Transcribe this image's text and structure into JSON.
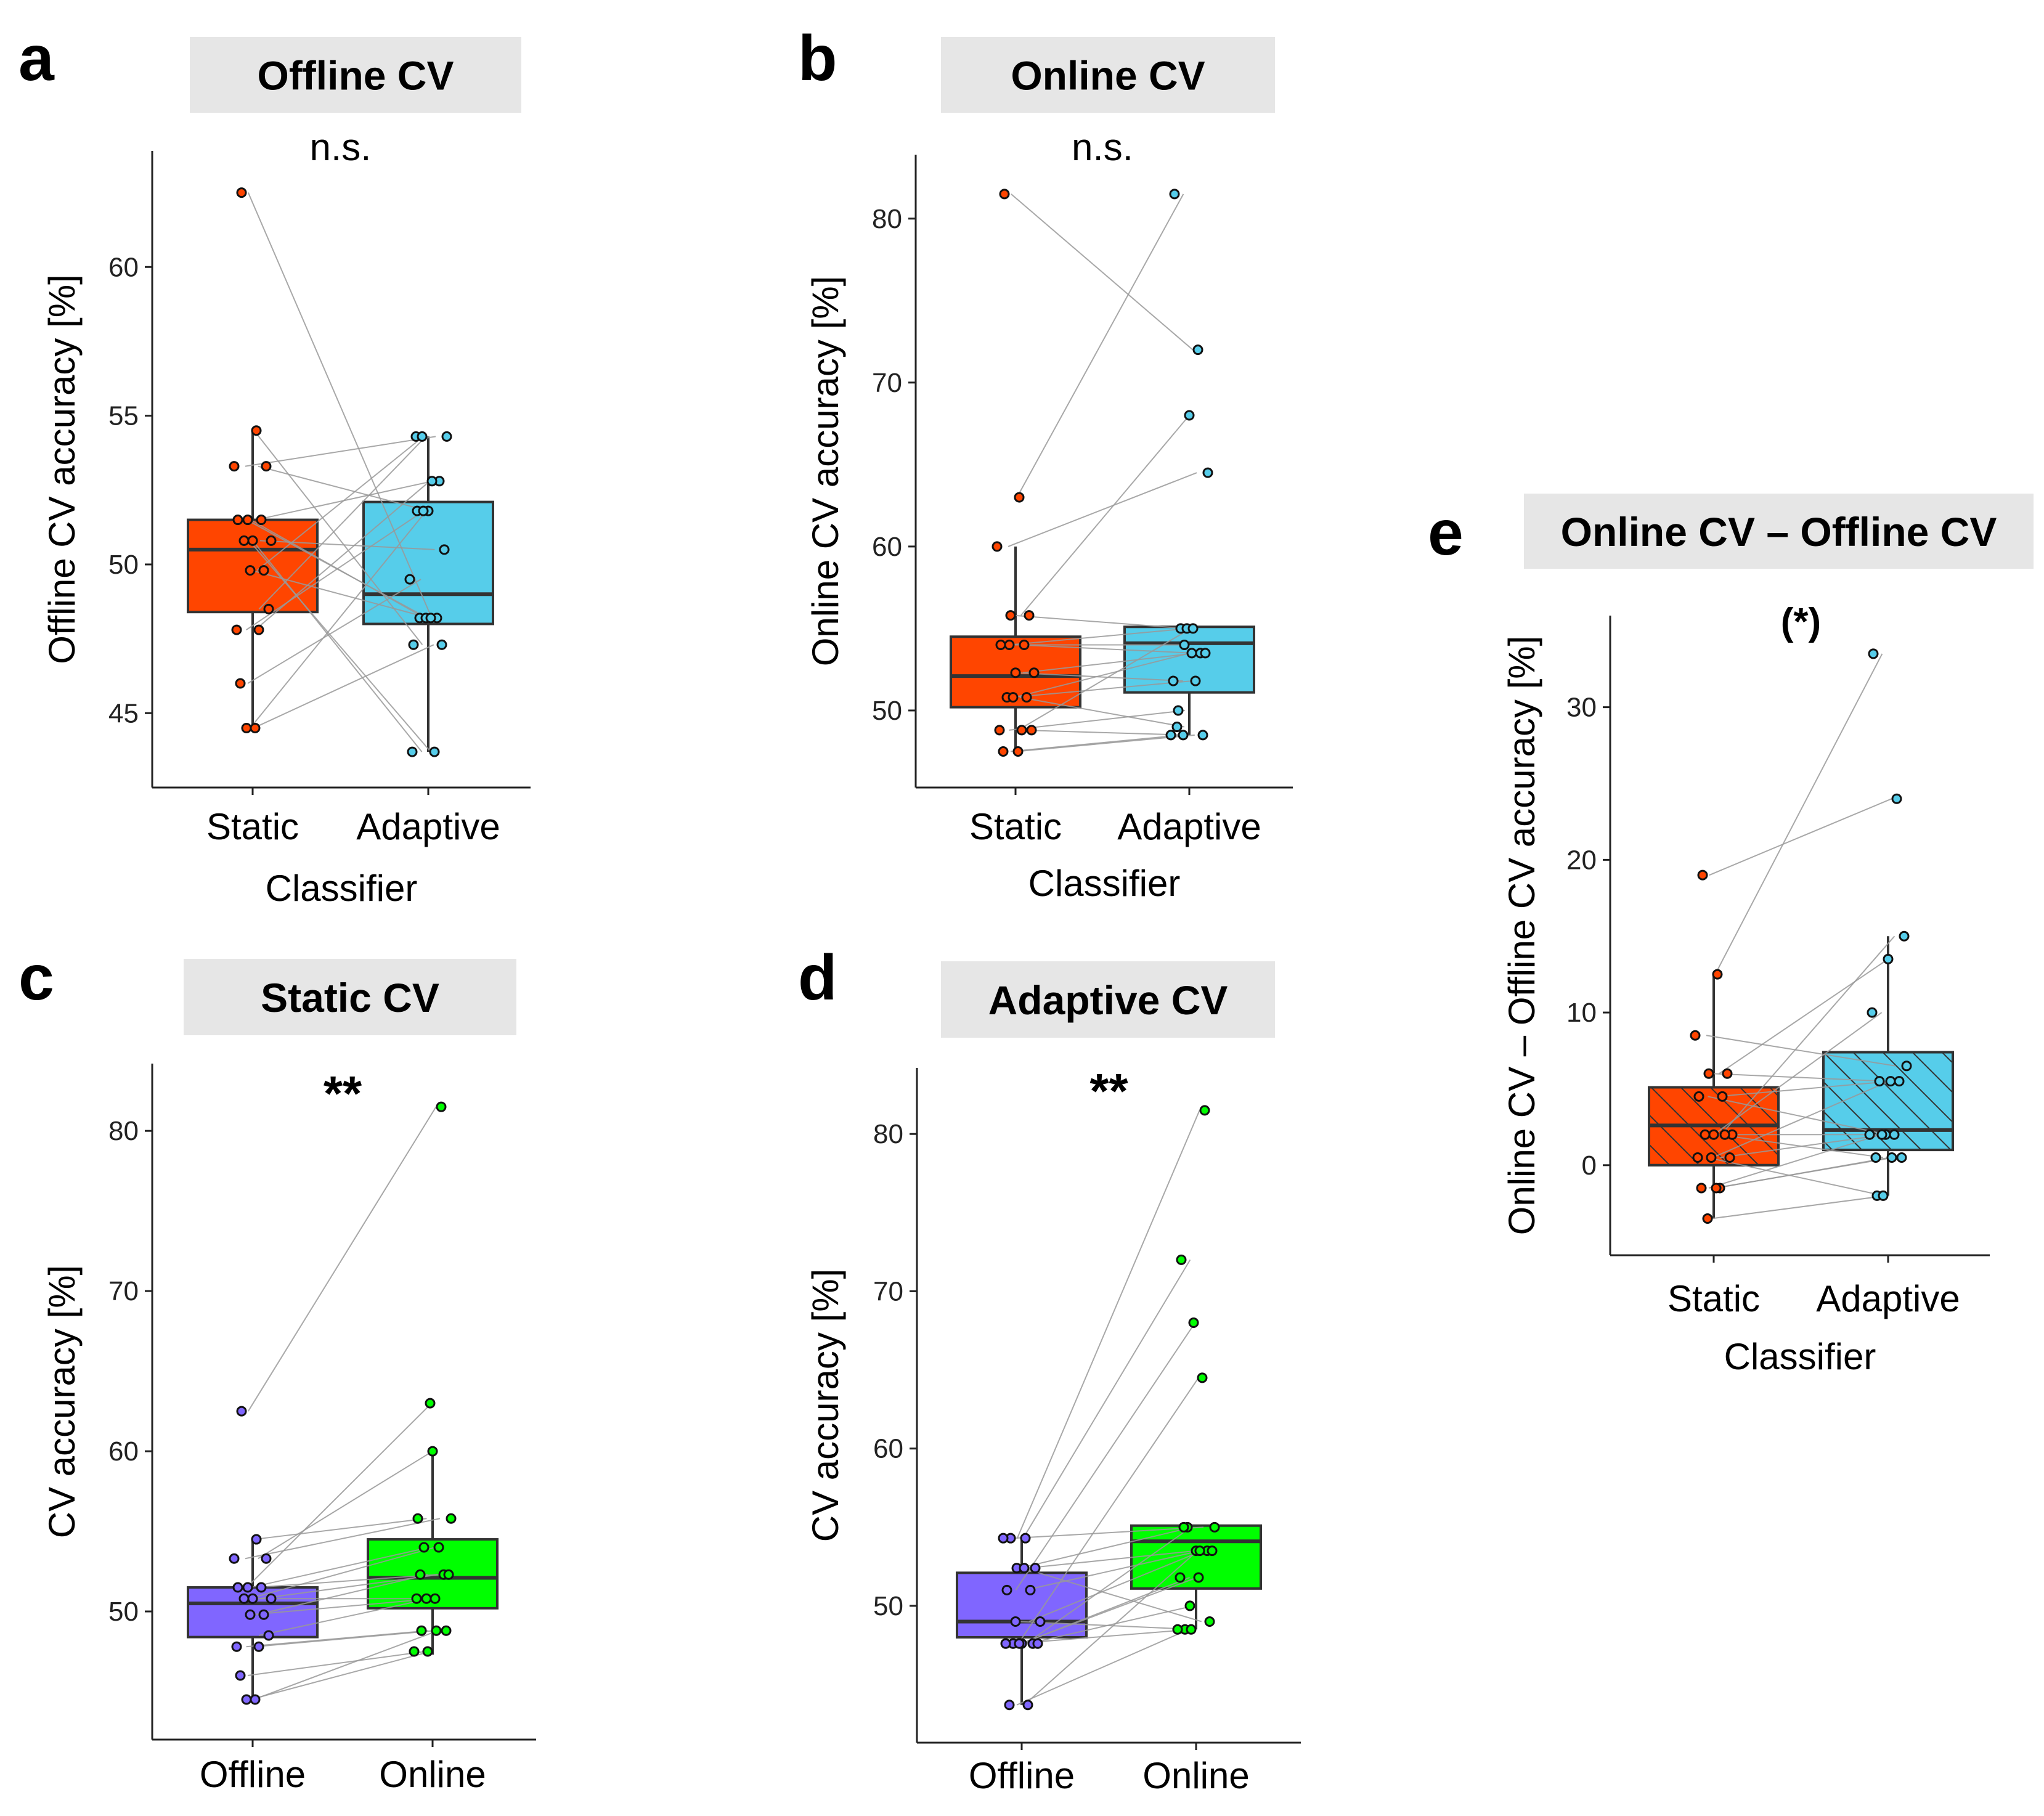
{
  "chart_data": [
    {
      "type": "box",
      "panel_letter": "a",
      "title": "Offline CV",
      "significance": "n.s.",
      "xlabel": "Classifier",
      "ylabel": "Offline CV accuracy [%]",
      "categories": [
        "Static",
        "Adaptive"
      ],
      "yticks": [
        45,
        50,
        55,
        60
      ],
      "ylim": [
        42.5,
        63.9
      ],
      "colors": [
        "#ff4500",
        "#56cdea"
      ],
      "hatched": false,
      "boxes": [
        {
          "q1": 48.4,
          "median": 50.5,
          "q3": 51.5,
          "whisker_low": 44.5,
          "whisker_high": 54.5
        },
        {
          "q1": 48.0,
          "median": 49.0,
          "q3": 52.1,
          "whisker_low": 43.7,
          "whisker_high": 54.3
        }
      ],
      "series": [
        [
          62.5,
          54.5,
          53.3,
          53.3,
          51.5,
          51.5,
          51.5,
          50.8,
          50.8,
          50.8,
          49.8,
          49.8,
          48.5,
          47.8,
          47.8,
          46.0,
          44.5,
          44.5
        ],
        [
          48.2,
          47.3,
          54.3,
          51.8,
          48.2,
          52.8,
          48.2,
          50.5,
          43.7,
          43.7,
          54.3,
          48.2,
          54.3,
          51.8,
          52.8,
          49.5,
          47.3,
          51.8
        ]
      ]
    },
    {
      "type": "box",
      "panel_letter": "b",
      "title": "Online CV",
      "significance": "n.s.",
      "xlabel": "Classifier",
      "ylabel": "Online CV accuracy [%]",
      "categories": [
        "Static",
        "Adaptive"
      ],
      "yticks": [
        50,
        60,
        70,
        80
      ],
      "ylim": [
        45.3,
        83.9
      ],
      "colors": [
        "#ff4500",
        "#56cdea"
      ],
      "hatched": false,
      "boxes": [
        {
          "q1": 50.2,
          "median": 52.1,
          "q3": 54.5,
          "whisker_low": 47.3,
          "whisker_high": 60.0
        },
        {
          "q1": 51.1,
          "median": 54.1,
          "q3": 55.1,
          "whisker_low": 48.5,
          "whisker_high": 55.1
        }
      ],
      "series": [
        [
          81.5,
          63.0,
          60.0,
          55.8,
          55.8,
          54.0,
          54.0,
          52.3,
          52.3,
          50.8,
          50.8,
          50.8,
          48.8,
          48.8,
          48.8,
          47.5,
          47.5,
          54.0
        ],
        [
          72.0,
          81.5,
          64.5,
          68.0,
          55.0,
          53.5,
          55.0,
          53.5,
          51.8,
          51.8,
          49.0,
          53.5,
          48.5,
          50.0,
          55.0,
          48.5,
          48.5,
          54.0
        ]
      ]
    },
    {
      "type": "box",
      "panel_letter": "c",
      "title": "Static CV",
      "significance": "**",
      "xlabel": "",
      "ylabel": "CV accuracy [%]",
      "categories": [
        "Offline",
        "Online"
      ],
      "yticks": [
        50,
        60,
        70,
        80
      ],
      "ylim": [
        42.0,
        84.2
      ],
      "colors": [
        "#8066ff",
        "#00ff00"
      ],
      "hatched": false,
      "boxes": [
        {
          "q1": 48.4,
          "median": 50.5,
          "q3": 51.5,
          "whisker_low": 44.5,
          "whisker_high": 54.5
        },
        {
          "q1": 50.2,
          "median": 52.1,
          "q3": 54.5,
          "whisker_low": 47.3,
          "whisker_high": 60.0
        }
      ],
      "series": [
        [
          62.5,
          54.5,
          53.3,
          53.3,
          51.5,
          51.5,
          51.5,
          50.8,
          50.8,
          50.8,
          49.8,
          49.8,
          48.5,
          47.8,
          47.8,
          46.0,
          44.5,
          44.5
        ],
        [
          81.5,
          55.8,
          55.8,
          60.0,
          54.0,
          52.3,
          63.0,
          52.3,
          50.8,
          54.0,
          52.3,
          50.8,
          50.8,
          48.8,
          48.8,
          47.5,
          48.8,
          47.5
        ]
      ]
    },
    {
      "type": "box",
      "panel_letter": "d",
      "title": "Adaptive CV",
      "significance": "**",
      "xlabel": "",
      "ylabel": "CV accuracy [%]",
      "categories": [
        "Offline",
        "Online"
      ],
      "yticks": [
        50,
        60,
        70,
        80
      ],
      "ylim": [
        41.3,
        84.2
      ],
      "colors": [
        "#8066ff",
        "#00ff00"
      ],
      "hatched": false,
      "boxes": [
        {
          "q1": 48.0,
          "median": 49.0,
          "q3": 52.1,
          "whisker_low": 43.7,
          "whisker_high": 54.3
        },
        {
          "q1": 51.1,
          "median": 54.1,
          "q3": 55.1,
          "whisker_low": 48.5,
          "whisker_high": 55.1
        }
      ],
      "series": [
        [
          54.3,
          54.3,
          54.3,
          52.4,
          52.4,
          51.0,
          51.0,
          49.0,
          47.6,
          47.6,
          47.6,
          47.6,
          47.6,
          47.6,
          43.7,
          43.7,
          52.4,
          49.0
        ],
        [
          81.5,
          72.0,
          55.0,
          53.5,
          55.0,
          53.5,
          68.0,
          53.5,
          51.8,
          64.5,
          55.0,
          51.8,
          50.0,
          48.5,
          53.5,
          48.5,
          49.0,
          48.5
        ]
      ]
    },
    {
      "type": "box",
      "panel_letter": "e",
      "title": "Online CV – Offline CV",
      "significance": "(*)",
      "xlabel": "Classifier",
      "ylabel": "Online CV – Offline CV accuracy [%]",
      "categories": [
        "Static",
        "Adaptive"
      ],
      "yticks": [
        0,
        10,
        20,
        30
      ],
      "ylim": [
        -5.9,
        36.0
      ],
      "colors": [
        "#ff4500",
        "#56cdea"
      ],
      "hatched": true,
      "boxes": [
        {
          "q1": 0.0,
          "median": 2.6,
          "q3": 5.1,
          "whisker_low": -3.5,
          "whisker_high": 12.5
        },
        {
          "q1": 1.0,
          "median": 2.3,
          "q3": 7.4,
          "whisker_low": -2.0,
          "whisker_high": 15.0
        }
      ],
      "series": [
        [
          19.0,
          12.5,
          8.5,
          6.0,
          6.0,
          4.5,
          4.5,
          2.0,
          2.0,
          2.0,
          2.0,
          0.5,
          0.5,
          0.5,
          -1.5,
          -1.5,
          -1.5,
          -3.5
        ],
        [
          24.0,
          33.5,
          6.5,
          13.5,
          5.5,
          5.5,
          2.0,
          15.0,
          10.0,
          2.0,
          0.5,
          5.5,
          2.0,
          -2.0,
          0.5,
          2.0,
          0.5,
          -2.0
        ]
      ]
    }
  ]
}
